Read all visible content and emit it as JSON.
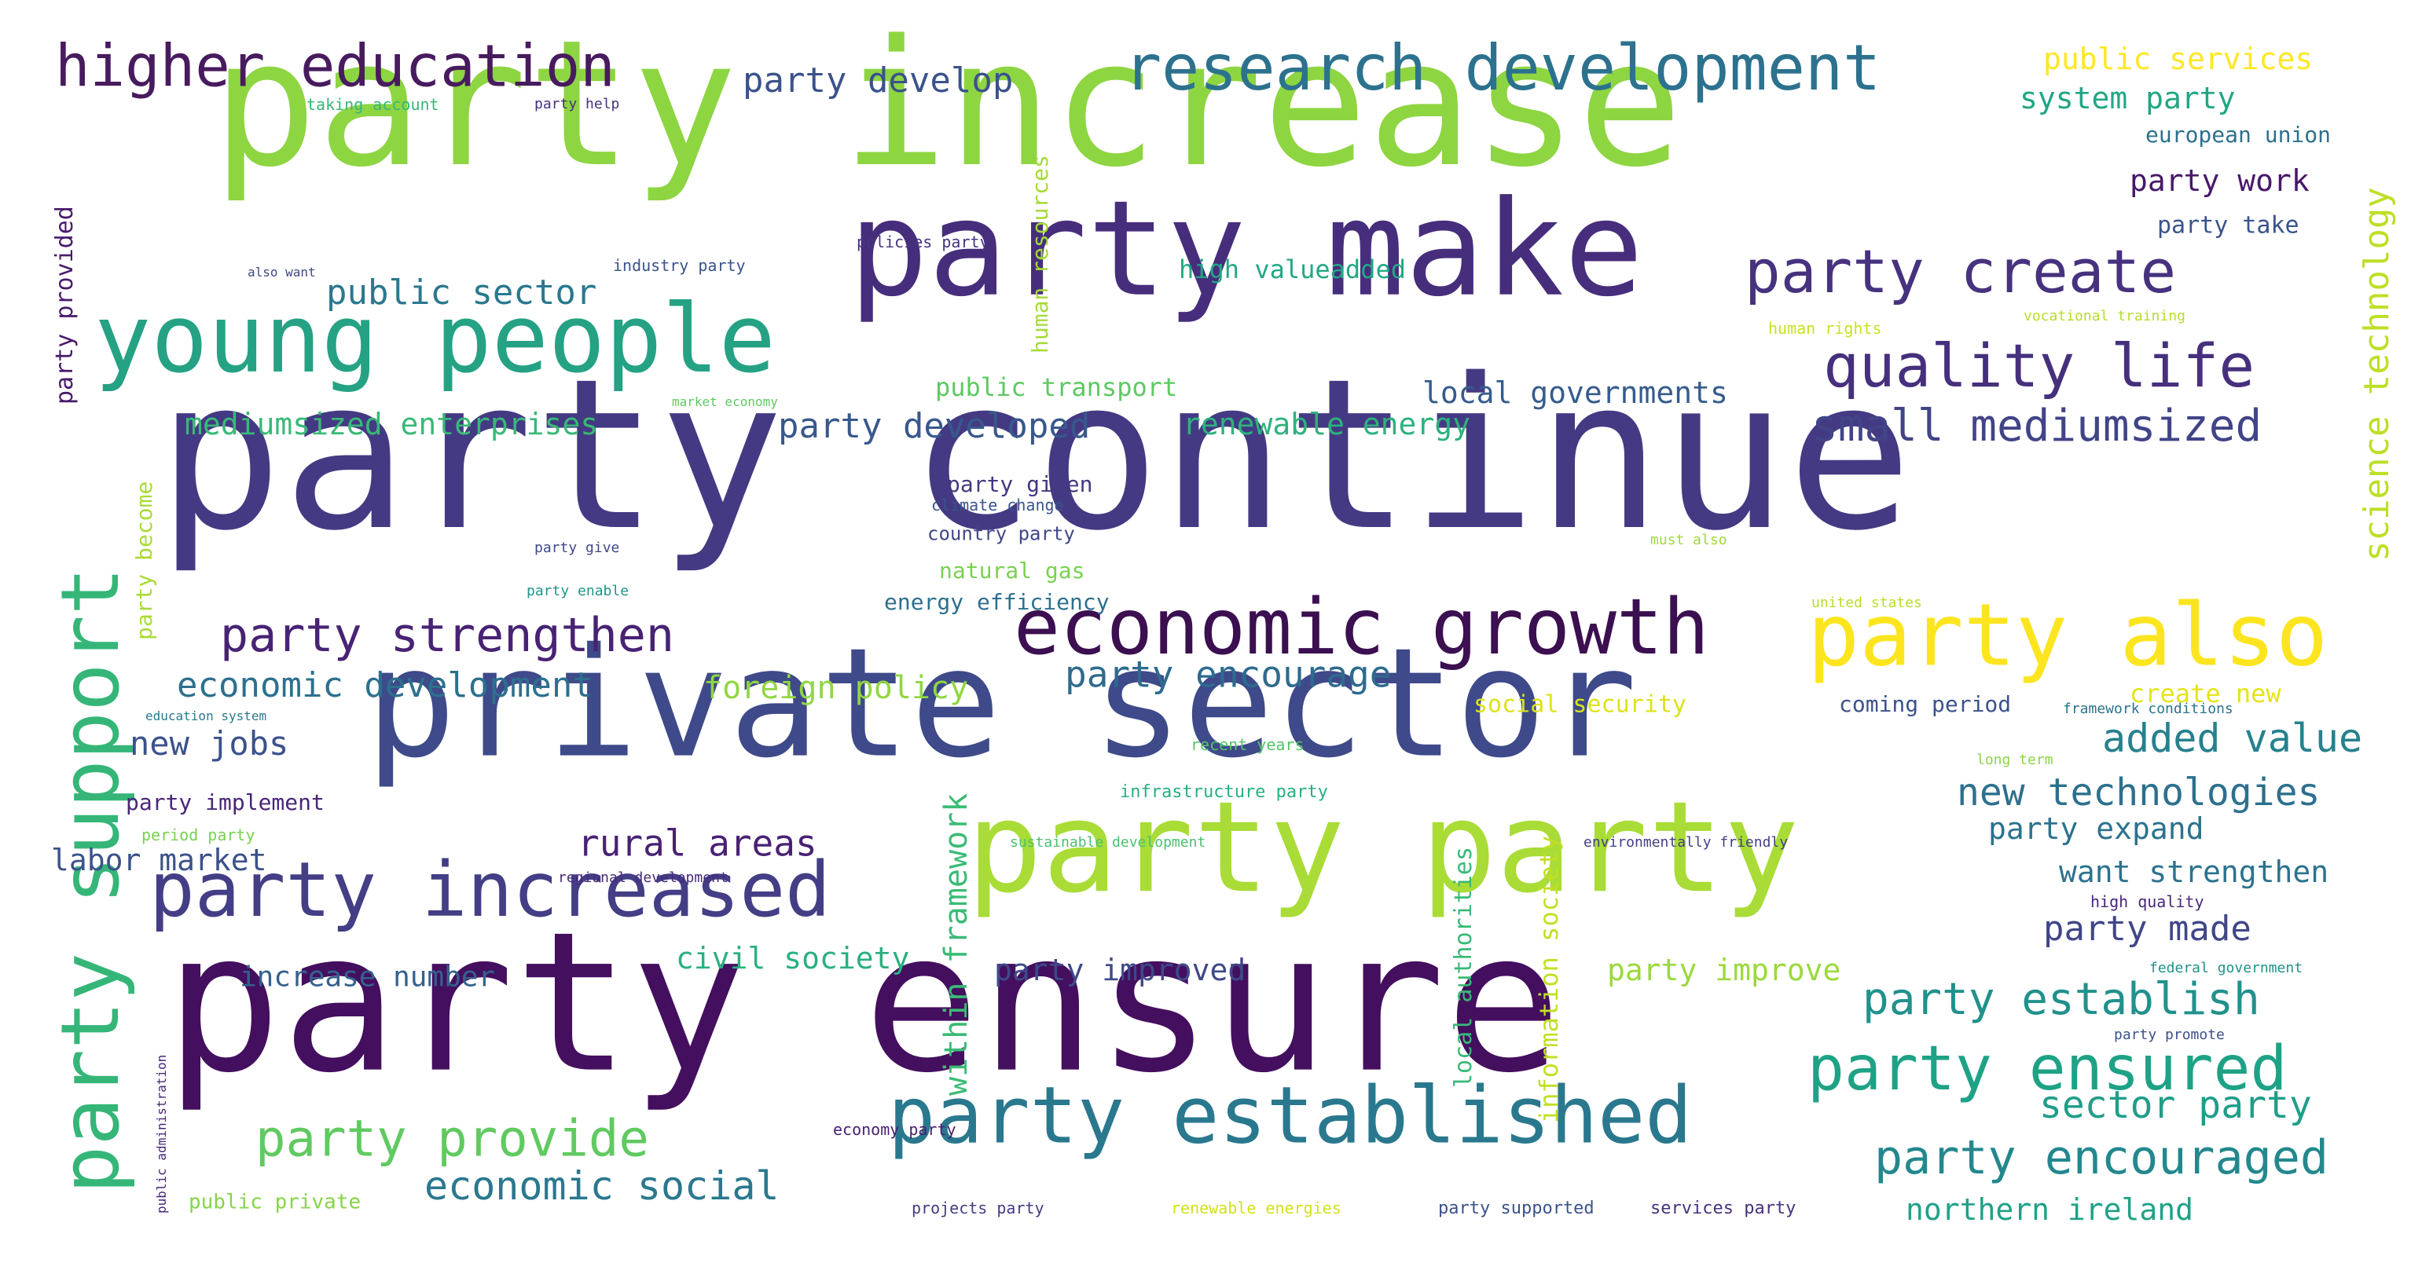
{
  "words": [
    {
      "text": "party increase",
      "color": "#8ed542"
    },
    {
      "text": "party continue",
      "color": "#443a83"
    },
    {
      "text": "private sector",
      "color": "#3e4a89"
    },
    {
      "text": "party ensure",
      "color": "#440f5f"
    },
    {
      "text": "party make",
      "color": "#472e7c"
    },
    {
      "text": "party party",
      "color": "#a9dc36"
    },
    {
      "text": "young people",
      "color": "#25a284"
    },
    {
      "text": "economic growth",
      "color": "#3b0f50"
    },
    {
      "text": "party established",
      "color": "#2a788e"
    },
    {
      "text": "party increased",
      "color": "#433e85"
    },
    {
      "text": "party also",
      "color": "#fce51e"
    },
    {
      "text": "party support",
      "color": "#35b678"
    },
    {
      "text": "research development",
      "color": "#2c728e"
    },
    {
      "text": "higher education",
      "color": "#471b5e"
    },
    {
      "text": "party create",
      "color": "#46327e"
    },
    {
      "text": "quality life",
      "color": "#46307d"
    },
    {
      "text": "party ensured",
      "color": "#1ea286"
    },
    {
      "text": "party strengthen",
      "color": "#482374"
    },
    {
      "text": "party provide",
      "color": "#60ca60"
    },
    {
      "text": "party encouraged",
      "color": "#23888e"
    },
    {
      "text": "small mediumsized",
      "color": "#414487"
    },
    {
      "text": "party establish",
      "color": "#21918c"
    },
    {
      "text": "economic social",
      "color": "#2a788e"
    },
    {
      "text": "rural areas",
      "color": "#482173"
    },
    {
      "text": "party encourage",
      "color": "#2e6b8e"
    },
    {
      "text": "added value",
      "color": "#26818e"
    },
    {
      "text": "new technologies",
      "color": "#2d708e"
    },
    {
      "text": "sector party",
      "color": "#1f9e89"
    },
    {
      "text": "economic development",
      "color": "#2d708e"
    },
    {
      "text": "public sector",
      "color": "#2a788e"
    },
    {
      "text": "party developed",
      "color": "#38588c"
    },
    {
      "text": "science technology",
      "color": "#bddf26"
    },
    {
      "text": "within framework",
      "color": "#3bbb75"
    },
    {
      "text": "party develop",
      "color": "#3b528b"
    },
    {
      "text": "public services",
      "color": "#fde725"
    },
    {
      "text": "system party",
      "color": "#21a685"
    },
    {
      "text": "party work",
      "color": "#48186a"
    },
    {
      "text": "party made",
      "color": "#404688"
    },
    {
      "text": "party expand",
      "color": "#2c728e"
    },
    {
      "text": "want strengthen",
      "color": "#2c728e"
    },
    {
      "text": "new jobs",
      "color": "#3b528b"
    },
    {
      "text": "labor market",
      "color": "#3b528b"
    },
    {
      "text": "mediumsized enterprises",
      "color": "#38b977"
    },
    {
      "text": "renewable energy",
      "color": "#2db27d"
    },
    {
      "text": "local governments",
      "color": "#365c8d"
    },
    {
      "text": "foreign policy",
      "color": "#90d743"
    },
    {
      "text": "civil society",
      "color": "#2ab07f"
    },
    {
      "text": "increase number",
      "color": "#34618d"
    },
    {
      "text": "party improved",
      "color": "#3e4989"
    },
    {
      "text": "party improve",
      "color": "#9bd93c"
    },
    {
      "text": "northern ireland",
      "color": "#1fa187"
    },
    {
      "text": "public transport",
      "color": "#5ec962"
    },
    {
      "text": "high valueadded",
      "color": "#22a884"
    },
    {
      "text": "human resources",
      "color": "#a5db36"
    },
    {
      "text": "information society",
      "color": "#c2df23"
    },
    {
      "text": "local authorities",
      "color": "#38b977"
    },
    {
      "text": "party take",
      "color": "#3a548c"
    },
    {
      "text": "european union",
      "color": "#2d708e"
    },
    {
      "text": "party provided",
      "color": "#481a6c"
    },
    {
      "text": "party become",
      "color": "#a8db34"
    },
    {
      "text": "social security",
      "color": "#dde318"
    },
    {
      "text": "create new",
      "color": "#e5e419"
    },
    {
      "text": "coming period",
      "color": "#3b528b"
    },
    {
      "text": "party given",
      "color": "#453882"
    },
    {
      "text": "natural gas",
      "color": "#7ad151"
    },
    {
      "text": "energy efficiency",
      "color": "#2d708e"
    },
    {
      "text": "country party",
      "color": "#404688"
    },
    {
      "text": "climate change",
      "color": "#3a548c"
    },
    {
      "text": "party implement",
      "color": "#482677"
    },
    {
      "text": "public private",
      "color": "#86d549"
    },
    {
      "text": "party supported",
      "color": "#3b528b"
    },
    {
      "text": "services party",
      "color": "#46337e"
    },
    {
      "text": "projects party",
      "color": "#433d84"
    },
    {
      "text": "renewable energies",
      "color": "#d2e21b"
    },
    {
      "text": "economy party",
      "color": "#481f70"
    },
    {
      "text": "industry party",
      "color": "#3b528b"
    },
    {
      "text": "policies party",
      "color": "#463480"
    },
    {
      "text": "taking account",
      "color": "#35b779"
    },
    {
      "text": "party help",
      "color": "#46307e"
    },
    {
      "text": "also want",
      "color": "#3f4788"
    },
    {
      "text": "market economy",
      "color": "#5ec962"
    },
    {
      "text": "human rights",
      "color": "#cae11f"
    },
    {
      "text": "vocational training",
      "color": "#b5de2b"
    },
    {
      "text": "must also",
      "color": "#a0da39"
    },
    {
      "text": "united states",
      "color": "#b8de29"
    },
    {
      "text": "framework conditions",
      "color": "#2c738e"
    },
    {
      "text": "long term",
      "color": "#8bd646"
    },
    {
      "text": "high quality",
      "color": "#482878"
    },
    {
      "text": "federal government",
      "color": "#20928c"
    },
    {
      "text": "party promote",
      "color": "#3c508b"
    },
    {
      "text": "infrastructure party",
      "color": "#29af7f"
    },
    {
      "text": "recent years",
      "color": "#54c568"
    },
    {
      "text": "sustainable development",
      "color": "#4ac16d"
    },
    {
      "text": "environmentally friendly",
      "color": "#423f85"
    },
    {
      "text": "regional development",
      "color": "#472a7a"
    },
    {
      "text": "period party",
      "color": "#7ad151"
    },
    {
      "text": "education system",
      "color": "#2a788e"
    },
    {
      "text": "party give",
      "color": "#3f4889"
    },
    {
      "text": "party enable",
      "color": "#1f968b"
    },
    {
      "text": "public administration",
      "color": "#482677"
    }
  ]
}
